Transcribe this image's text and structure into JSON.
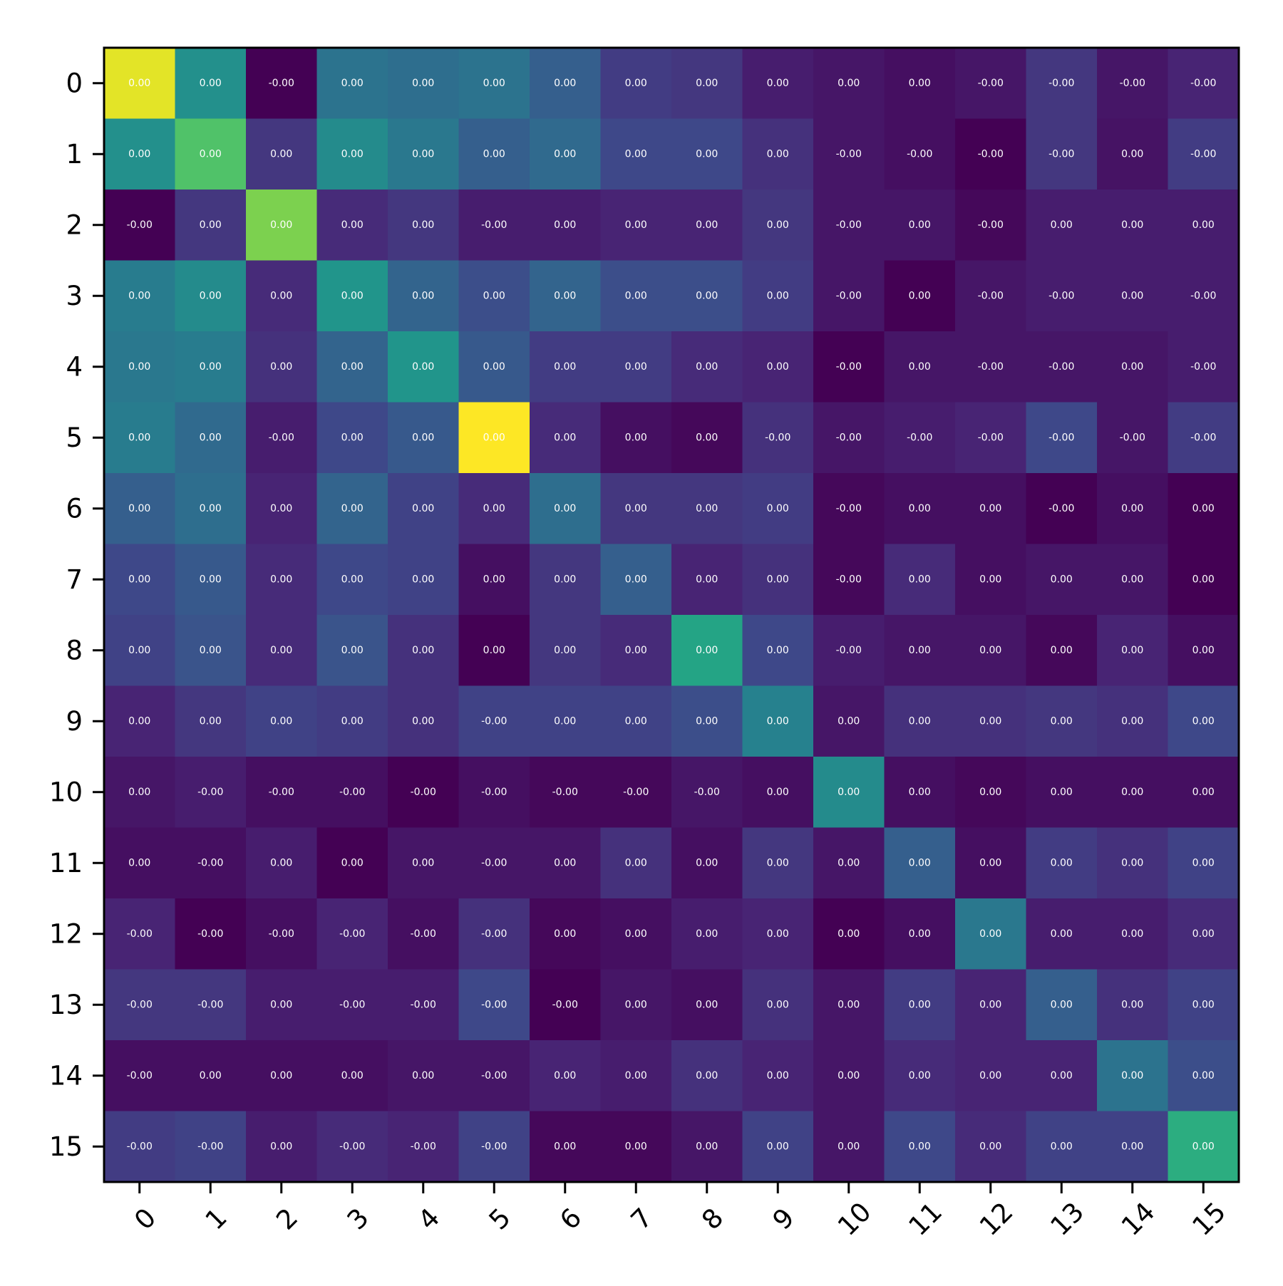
{
  "chart_data": {
    "type": "heatmap",
    "title": "",
    "xlabel": "",
    "ylabel": "",
    "colormap": "viridis",
    "color_scale_min": 0.0,
    "color_scale_max": 1.0,
    "x_categories": [
      "0",
      "1",
      "2",
      "3",
      "4",
      "5",
      "6",
      "7",
      "8",
      "9",
      "10",
      "11",
      "12",
      "13",
      "14",
      "15"
    ],
    "y_categories": [
      "0",
      "1",
      "2",
      "3",
      "4",
      "5",
      "6",
      "7",
      "8",
      "9",
      "10",
      "11",
      "12",
      "13",
      "14",
      "15"
    ],
    "cell_labels": [
      [
        "0.00",
        "0.00",
        "-0.00",
        "0.00",
        "0.00",
        "0.00",
        "0.00",
        "0.00",
        "0.00",
        "0.00",
        "0.00",
        "0.00",
        "-0.00",
        "-0.00",
        "-0.00",
        "-0.00"
      ],
      [
        "0.00",
        "0.00",
        "0.00",
        "0.00",
        "0.00",
        "0.00",
        "0.00",
        "0.00",
        "0.00",
        "0.00",
        "-0.00",
        "-0.00",
        "-0.00",
        "-0.00",
        "0.00",
        "-0.00"
      ],
      [
        "-0.00",
        "0.00",
        "0.00",
        "0.00",
        "0.00",
        "-0.00",
        "0.00",
        "0.00",
        "0.00",
        "0.00",
        "-0.00",
        "0.00",
        "-0.00",
        "0.00",
        "0.00",
        "0.00"
      ],
      [
        "0.00",
        "0.00",
        "0.00",
        "0.00",
        "0.00",
        "0.00",
        "0.00",
        "0.00",
        "0.00",
        "0.00",
        "-0.00",
        "0.00",
        "-0.00",
        "-0.00",
        "0.00",
        "-0.00"
      ],
      [
        "0.00",
        "0.00",
        "0.00",
        "0.00",
        "0.00",
        "0.00",
        "0.00",
        "0.00",
        "0.00",
        "0.00",
        "-0.00",
        "0.00",
        "-0.00",
        "-0.00",
        "0.00",
        "-0.00"
      ],
      [
        "0.00",
        "0.00",
        "-0.00",
        "0.00",
        "0.00",
        "0.00",
        "0.00",
        "0.00",
        "0.00",
        "-0.00",
        "-0.00",
        "-0.00",
        "-0.00",
        "-0.00",
        "-0.00",
        "-0.00"
      ],
      [
        "0.00",
        "0.00",
        "0.00",
        "0.00",
        "0.00",
        "0.00",
        "0.00",
        "0.00",
        "0.00",
        "0.00",
        "-0.00",
        "0.00",
        "0.00",
        "-0.00",
        "0.00",
        "0.00"
      ],
      [
        "0.00",
        "0.00",
        "0.00",
        "0.00",
        "0.00",
        "0.00",
        "0.00",
        "0.00",
        "0.00",
        "0.00",
        "-0.00",
        "0.00",
        "0.00",
        "0.00",
        "0.00",
        "0.00"
      ],
      [
        "0.00",
        "0.00",
        "0.00",
        "0.00",
        "0.00",
        "0.00",
        "0.00",
        "0.00",
        "0.00",
        "0.00",
        "-0.00",
        "0.00",
        "0.00",
        "0.00",
        "0.00",
        "0.00"
      ],
      [
        "0.00",
        "0.00",
        "0.00",
        "0.00",
        "0.00",
        "-0.00",
        "0.00",
        "0.00",
        "0.00",
        "0.00",
        "0.00",
        "0.00",
        "0.00",
        "0.00",
        "0.00",
        "0.00"
      ],
      [
        "0.00",
        "-0.00",
        "-0.00",
        "-0.00",
        "-0.00",
        "-0.00",
        "-0.00",
        "-0.00",
        "-0.00",
        "0.00",
        "0.00",
        "0.00",
        "0.00",
        "0.00",
        "0.00",
        "0.00"
      ],
      [
        "0.00",
        "-0.00",
        "0.00",
        "0.00",
        "0.00",
        "-0.00",
        "0.00",
        "0.00",
        "0.00",
        "0.00",
        "0.00",
        "0.00",
        "0.00",
        "0.00",
        "0.00",
        "0.00"
      ],
      [
        "-0.00",
        "-0.00",
        "-0.00",
        "-0.00",
        "-0.00",
        "-0.00",
        "0.00",
        "0.00",
        "0.00",
        "0.00",
        "0.00",
        "0.00",
        "0.00",
        "0.00",
        "0.00",
        "0.00"
      ],
      [
        "-0.00",
        "-0.00",
        "0.00",
        "-0.00",
        "-0.00",
        "-0.00",
        "-0.00",
        "0.00",
        "0.00",
        "0.00",
        "0.00",
        "0.00",
        "0.00",
        "0.00",
        "0.00",
        "0.00"
      ],
      [
        "-0.00",
        "0.00",
        "0.00",
        "0.00",
        "0.00",
        "-0.00",
        "0.00",
        "0.00",
        "0.00",
        "0.00",
        "0.00",
        "0.00",
        "0.00",
        "0.00",
        "0.00",
        "0.00"
      ],
      [
        "-0.00",
        "-0.00",
        "0.00",
        "-0.00",
        "-0.00",
        "-0.00",
        "0.00",
        "0.00",
        "0.00",
        "0.00",
        "0.00",
        "0.00",
        "0.00",
        "0.00",
        "0.00",
        "0.00"
      ]
    ],
    "color_intensity": [
      [
        0.96,
        0.5,
        0.0,
        0.38,
        0.36,
        0.38,
        0.3,
        0.18,
        0.16,
        0.08,
        0.06,
        0.04,
        0.06,
        0.16,
        0.06,
        0.1
      ],
      [
        0.5,
        0.72,
        0.16,
        0.48,
        0.4,
        0.3,
        0.34,
        0.22,
        0.22,
        0.14,
        0.06,
        0.04,
        0.0,
        0.16,
        0.05,
        0.18
      ],
      [
        0.0,
        0.16,
        0.8,
        0.12,
        0.16,
        0.08,
        0.08,
        0.1,
        0.1,
        0.16,
        0.06,
        0.06,
        0.02,
        0.08,
        0.08,
        0.08
      ],
      [
        0.42,
        0.48,
        0.12,
        0.52,
        0.32,
        0.24,
        0.32,
        0.24,
        0.24,
        0.18,
        0.06,
        0.0,
        0.06,
        0.08,
        0.08,
        0.08
      ],
      [
        0.4,
        0.42,
        0.14,
        0.32,
        0.52,
        0.28,
        0.18,
        0.18,
        0.12,
        0.1,
        0.0,
        0.06,
        0.06,
        0.06,
        0.06,
        0.08
      ],
      [
        0.42,
        0.34,
        0.08,
        0.22,
        0.28,
        1.0,
        0.12,
        0.04,
        0.02,
        0.14,
        0.06,
        0.08,
        0.1,
        0.22,
        0.06,
        0.18
      ],
      [
        0.3,
        0.36,
        0.1,
        0.32,
        0.2,
        0.12,
        0.36,
        0.16,
        0.16,
        0.18,
        0.02,
        0.04,
        0.04,
        0.0,
        0.04,
        0.0
      ],
      [
        0.22,
        0.28,
        0.12,
        0.22,
        0.2,
        0.04,
        0.16,
        0.3,
        0.1,
        0.14,
        0.02,
        0.12,
        0.04,
        0.06,
        0.06,
        0.0
      ],
      [
        0.2,
        0.26,
        0.12,
        0.26,
        0.14,
        0.0,
        0.16,
        0.12,
        0.58,
        0.22,
        0.08,
        0.06,
        0.06,
        0.02,
        0.1,
        0.04
      ],
      [
        0.1,
        0.16,
        0.2,
        0.18,
        0.14,
        0.2,
        0.2,
        0.2,
        0.24,
        0.44,
        0.06,
        0.14,
        0.14,
        0.16,
        0.14,
        0.22
      ],
      [
        0.06,
        0.08,
        0.04,
        0.04,
        0.0,
        0.04,
        0.02,
        0.02,
        0.06,
        0.04,
        0.48,
        0.04,
        0.02,
        0.04,
        0.04,
        0.04
      ],
      [
        0.04,
        0.04,
        0.08,
        0.0,
        0.06,
        0.06,
        0.06,
        0.14,
        0.04,
        0.16,
        0.06,
        0.3,
        0.04,
        0.18,
        0.14,
        0.2
      ],
      [
        0.1,
        0.0,
        0.04,
        0.1,
        0.04,
        0.14,
        0.02,
        0.04,
        0.08,
        0.1,
        0.0,
        0.04,
        0.4,
        0.08,
        0.08,
        0.12
      ],
      [
        0.16,
        0.16,
        0.08,
        0.08,
        0.08,
        0.22,
        0.0,
        0.06,
        0.04,
        0.14,
        0.06,
        0.18,
        0.1,
        0.3,
        0.14,
        0.2
      ],
      [
        0.04,
        0.04,
        0.04,
        0.04,
        0.06,
        0.06,
        0.1,
        0.08,
        0.14,
        0.1,
        0.06,
        0.12,
        0.1,
        0.1,
        0.38,
        0.24
      ],
      [
        0.18,
        0.2,
        0.08,
        0.12,
        0.1,
        0.2,
        0.02,
        0.02,
        0.06,
        0.2,
        0.06,
        0.22,
        0.12,
        0.2,
        0.2,
        0.62
      ]
    ],
    "colors": {
      "viridis": [
        "#440154",
        "#482878",
        "#3e4989",
        "#31688e",
        "#26828e",
        "#1f9e89",
        "#35b779",
        "#6ece58",
        "#b5de2b",
        "#fde725"
      ],
      "frame": "#000000",
      "cell_text": "#ffffff"
    }
  }
}
